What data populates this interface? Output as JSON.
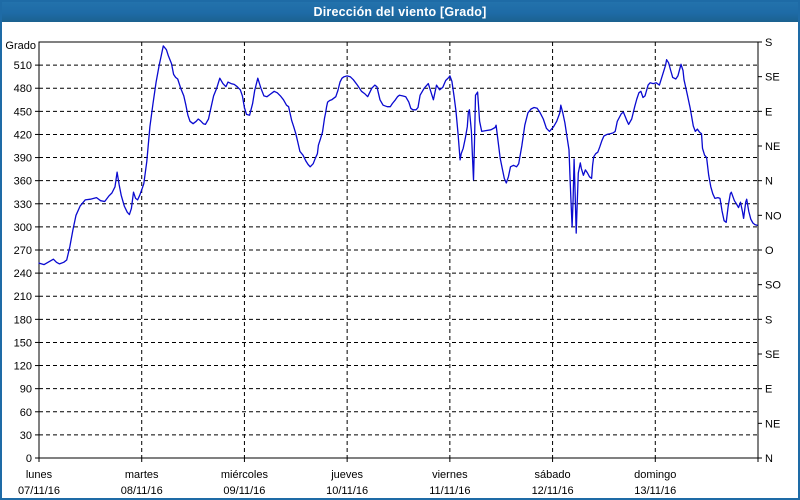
{
  "window": {
    "title": "Dirección del viento [Grado]"
  },
  "colors": {
    "titlebar_bg": "#1e6ba6",
    "titlebar_text": "#ffffff",
    "window_border": "#1e6ba6",
    "plot_bg": "#ffffff",
    "axis": "#000000",
    "grid": "#000000",
    "text": "#000000",
    "series": "#0a0ad0"
  },
  "chart_data": {
    "type": "line",
    "title": "Dirección del viento [Grado]",
    "ylabel": "Grado",
    "grid": "dashed",
    "legend": "none",
    "y_axis": {
      "min": 0,
      "max": 540,
      "tick_step": 30,
      "max_labeled_tick": 510
    },
    "right_axis": {
      "tick_step": 45,
      "labels_top_to_bottom": [
        "S",
        "SE",
        "E",
        "NE",
        "N",
        "NO",
        "O",
        "SO",
        "S",
        "SE",
        "E",
        "NE",
        "N"
      ]
    },
    "x_axis": {
      "days_total": 7,
      "days": [
        {
          "name": "lunes",
          "date": "07/11/16"
        },
        {
          "name": "martes",
          "date": "08/11/16"
        },
        {
          "name": "miércoles",
          "date": "09/11/16"
        },
        {
          "name": "jueves",
          "date": "10/11/16"
        },
        {
          "name": "viernes",
          "date": "11/11/16"
        },
        {
          "name": "sábado",
          "date": "12/11/16"
        },
        {
          "name": "domingo",
          "date": "13/11/16"
        }
      ]
    },
    "series": [
      {
        "name": "Dirección del viento [Grado]",
        "color": "#0a0ad0",
        "points": [
          [
            0.0,
            253
          ],
          [
            0.05,
            251
          ],
          [
            0.1,
            255
          ],
          [
            0.14,
            258
          ],
          [
            0.17,
            254
          ],
          [
            0.2,
            252
          ],
          [
            0.24,
            254
          ],
          [
            0.27,
            257
          ],
          [
            0.3,
            274
          ],
          [
            0.33,
            296
          ],
          [
            0.36,
            315
          ],
          [
            0.4,
            327
          ],
          [
            0.45,
            335
          ],
          [
            0.5,
            336
          ],
          [
            0.56,
            338
          ],
          [
            0.6,
            334
          ],
          [
            0.64,
            333
          ],
          [
            0.68,
            340
          ],
          [
            0.71,
            344
          ],
          [
            0.74,
            352
          ],
          [
            0.76,
            371
          ],
          [
            0.78,
            355
          ],
          [
            0.8,
            341
          ],
          [
            0.83,
            327
          ],
          [
            0.86,
            319
          ],
          [
            0.88,
            316
          ],
          [
            0.9,
            324
          ],
          [
            0.92,
            345
          ],
          [
            0.94,
            337
          ],
          [
            0.96,
            335
          ],
          [
            0.98,
            341
          ],
          [
            1.0,
            348
          ],
          [
            1.02,
            356
          ],
          [
            1.05,
            385
          ],
          [
            1.08,
            430
          ],
          [
            1.11,
            460
          ],
          [
            1.14,
            488
          ],
          [
            1.17,
            510
          ],
          [
            1.19,
            522
          ],
          [
            1.21,
            535
          ],
          [
            1.24,
            530
          ],
          [
            1.26,
            522
          ],
          [
            1.29,
            512
          ],
          [
            1.31,
            498
          ],
          [
            1.33,
            494
          ],
          [
            1.35,
            492
          ],
          [
            1.38,
            480
          ],
          [
            1.41,
            470
          ],
          [
            1.43,
            458
          ],
          [
            1.45,
            445
          ],
          [
            1.47,
            437
          ],
          [
            1.5,
            434
          ],
          [
            1.53,
            437
          ],
          [
            1.55,
            440
          ],
          [
            1.57,
            438
          ],
          [
            1.6,
            434
          ],
          [
            1.62,
            433
          ],
          [
            1.65,
            440
          ],
          [
            1.67,
            452
          ],
          [
            1.7,
            470
          ],
          [
            1.73,
            480
          ],
          [
            1.76,
            493
          ],
          [
            1.79,
            486
          ],
          [
            1.82,
            482
          ],
          [
            1.84,
            488
          ],
          [
            1.87,
            486
          ],
          [
            1.9,
            485
          ],
          [
            1.93,
            482
          ],
          [
            1.96,
            478
          ],
          [
            1.98,
            470
          ],
          [
            2.0,
            455
          ],
          [
            2.02,
            446
          ],
          [
            2.05,
            445
          ],
          [
            2.08,
            460
          ],
          [
            2.1,
            477
          ],
          [
            2.13,
            493
          ],
          [
            2.16,
            480
          ],
          [
            2.19,
            470
          ],
          [
            2.22,
            469
          ],
          [
            2.25,
            472
          ],
          [
            2.29,
            476
          ],
          [
            2.32,
            474
          ],
          [
            2.35,
            470
          ],
          [
            2.38,
            465
          ],
          [
            2.41,
            458
          ],
          [
            2.43,
            456
          ],
          [
            2.46,
            438
          ],
          [
            2.48,
            430
          ],
          [
            2.5,
            421
          ],
          [
            2.52,
            410
          ],
          [
            2.54,
            398
          ],
          [
            2.57,
            393
          ],
          [
            2.6,
            385
          ],
          [
            2.62,
            381
          ],
          [
            2.64,
            378
          ],
          [
            2.67,
            382
          ],
          [
            2.69,
            389
          ],
          [
            2.71,
            395
          ],
          [
            2.72,
            406
          ],
          [
            2.74,
            414
          ],
          [
            2.76,
            423
          ],
          [
            2.78,
            441
          ],
          [
            2.79,
            448
          ],
          [
            2.8,
            456
          ],
          [
            2.81,
            462
          ],
          [
            2.83,
            464
          ],
          [
            2.85,
            465
          ],
          [
            2.87,
            467
          ],
          [
            2.89,
            469
          ],
          [
            2.91,
            477
          ],
          [
            2.93,
            488
          ],
          [
            2.95,
            493
          ],
          [
            2.97,
            495
          ],
          [
            3.0,
            496
          ],
          [
            3.03,
            495
          ],
          [
            3.06,
            491
          ],
          [
            3.1,
            484
          ],
          [
            3.14,
            476
          ],
          [
            3.17,
            473
          ],
          [
            3.2,
            469
          ],
          [
            3.24,
            480
          ],
          [
            3.27,
            484
          ],
          [
            3.29,
            482
          ],
          [
            3.32,
            465
          ],
          [
            3.35,
            458
          ],
          [
            3.39,
            456
          ],
          [
            3.42,
            456
          ],
          [
            3.44,
            460
          ],
          [
            3.47,
            465
          ],
          [
            3.49,
            469
          ],
          [
            3.51,
            471
          ],
          [
            3.54,
            470
          ],
          [
            3.57,
            469
          ],
          [
            3.6,
            462
          ],
          [
            3.62,
            454
          ],
          [
            3.64,
            452
          ],
          [
            3.67,
            452
          ],
          [
            3.69,
            455
          ],
          [
            3.71,
            471
          ],
          [
            3.75,
            480
          ],
          [
            3.79,
            486
          ],
          [
            3.84,
            465
          ],
          [
            3.87,
            484
          ],
          [
            3.9,
            478
          ],
          [
            3.93,
            481
          ],
          [
            3.96,
            490
          ],
          [
            3.99,
            494
          ],
          [
            4.0,
            496
          ],
          [
            4.02,
            489
          ],
          [
            4.04,
            470
          ],
          [
            4.06,
            450
          ],
          [
            4.08,
            420
          ],
          [
            4.1,
            387
          ],
          [
            4.11,
            395
          ],
          [
            4.13,
            402
          ],
          [
            4.15,
            415
          ],
          [
            4.17,
            430
          ],
          [
            4.18,
            448
          ],
          [
            4.19,
            452
          ],
          [
            4.21,
            424
          ],
          [
            4.22,
            390
          ],
          [
            4.23,
            361
          ],
          [
            4.24,
            410
          ],
          [
            4.25,
            471
          ],
          [
            4.27,
            475
          ],
          [
            4.29,
            437
          ],
          [
            4.31,
            424
          ],
          [
            4.35,
            425
          ],
          [
            4.4,
            426
          ],
          [
            4.44,
            429
          ],
          [
            4.45,
            432
          ],
          [
            4.47,
            411
          ],
          [
            4.49,
            389
          ],
          [
            4.51,
            376
          ],
          [
            4.53,
            363
          ],
          [
            4.55,
            357
          ],
          [
            4.57,
            365
          ],
          [
            4.59,
            378
          ],
          [
            4.62,
            380
          ],
          [
            4.65,
            378
          ],
          [
            4.67,
            382
          ],
          [
            4.7,
            405
          ],
          [
            4.73,
            432
          ],
          [
            4.76,
            448
          ],
          [
            4.79,
            453
          ],
          [
            4.82,
            455
          ],
          [
            4.85,
            454
          ],
          [
            4.88,
            448
          ],
          [
            4.91,
            440
          ],
          [
            4.94,
            428
          ],
          [
            4.97,
            424
          ],
          [
            4.99,
            427
          ],
          [
            5.01,
            430
          ],
          [
            5.04,
            437
          ],
          [
            5.07,
            448
          ],
          [
            5.08,
            458
          ],
          [
            5.1,
            448
          ],
          [
            5.12,
            435
          ],
          [
            5.14,
            417
          ],
          [
            5.16,
            400
          ],
          [
            5.17,
            365
          ],
          [
            5.18,
            330
          ],
          [
            5.19,
            300
          ],
          [
            5.2,
            335
          ],
          [
            5.21,
            388
          ],
          [
            5.22,
            340
          ],
          [
            5.23,
            292
          ],
          [
            5.24,
            330
          ],
          [
            5.25,
            370
          ],
          [
            5.27,
            383
          ],
          [
            5.28,
            376
          ],
          [
            5.3,
            367
          ],
          [
            5.32,
            374
          ],
          [
            5.34,
            370
          ],
          [
            5.36,
            365
          ],
          [
            5.38,
            363
          ],
          [
            5.39,
            380
          ],
          [
            5.4,
            391
          ],
          [
            5.42,
            395
          ],
          [
            5.44,
            397
          ],
          [
            5.46,
            404
          ],
          [
            5.48,
            412
          ],
          [
            5.5,
            418
          ],
          [
            5.53,
            420
          ],
          [
            5.56,
            421
          ],
          [
            5.59,
            422
          ],
          [
            5.61,
            424
          ],
          [
            5.63,
            437
          ],
          [
            5.65,
            442
          ],
          [
            5.67,
            447
          ],
          [
            5.69,
            449
          ],
          [
            5.72,
            439
          ],
          [
            5.74,
            433
          ],
          [
            5.77,
            440
          ],
          [
            5.8,
            456
          ],
          [
            5.82,
            466
          ],
          [
            5.84,
            474
          ],
          [
            5.86,
            476
          ],
          [
            5.88,
            468
          ],
          [
            5.9,
            470
          ],
          [
            5.93,
            484
          ],
          [
            5.95,
            487
          ],
          [
            5.98,
            486
          ],
          [
            6.01,
            487
          ],
          [
            6.04,
            484
          ],
          [
            6.07,
            497
          ],
          [
            6.1,
            510
          ],
          [
            6.11,
            517
          ],
          [
            6.13,
            513
          ],
          [
            6.15,
            503
          ],
          [
            6.17,
            494
          ],
          [
            6.2,
            492
          ],
          [
            6.22,
            496
          ],
          [
            6.25,
            511
          ],
          [
            6.27,
            503
          ],
          [
            6.28,
            491
          ],
          [
            6.31,
            473
          ],
          [
            6.34,
            454
          ],
          [
            6.37,
            431
          ],
          [
            6.39,
            424
          ],
          [
            6.41,
            427
          ],
          [
            6.43,
            423
          ],
          [
            6.45,
            421
          ],
          [
            6.46,
            402
          ],
          [
            6.48,
            393
          ],
          [
            6.5,
            390
          ],
          [
            6.52,
            367
          ],
          [
            6.54,
            352
          ],
          [
            6.56,
            343
          ],
          [
            6.58,
            337
          ],
          [
            6.61,
            338
          ],
          [
            6.63,
            337
          ],
          [
            6.65,
            321
          ],
          [
            6.67,
            308
          ],
          [
            6.69,
            306
          ],
          [
            6.71,
            327
          ],
          [
            6.73,
            343
          ],
          [
            6.74,
            345
          ],
          [
            6.77,
            334
          ],
          [
            6.79,
            330
          ],
          [
            6.81,
            325
          ],
          [
            6.83,
            332
          ],
          [
            6.85,
            319
          ],
          [
            6.86,
            311
          ],
          [
            6.88,
            332
          ],
          [
            6.89,
            336
          ],
          [
            6.91,
            320
          ],
          [
            6.93,
            310
          ],
          [
            6.95,
            305
          ],
          [
            6.97,
            303
          ],
          [
            6.99,
            302
          ]
        ]
      }
    ]
  }
}
